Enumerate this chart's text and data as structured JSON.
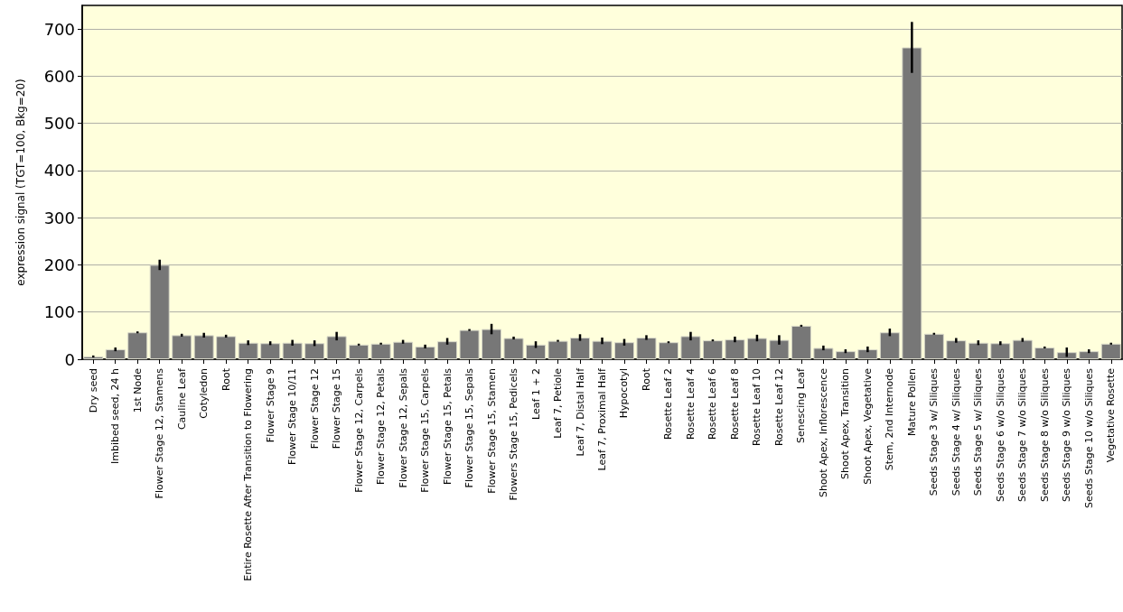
{
  "chart_data": {
    "type": "bar",
    "ylabel": "expression signal (TGT=100, Bkg=20)",
    "categories": [
      "Dry seed",
      "Imbibed seed, 24 h",
      "1st Node",
      "Flower Stage 12, Stamens",
      "Cauline Leaf",
      "Cotyledon",
      "Root",
      "Entire Rosette After Transition to Flowering",
      "Flower Stage 9",
      "Flower Stage 10/11",
      "Flower Stage 12",
      "Flower Stage 15",
      "Flower Stage 12, Carpels",
      "Flower Stage 12, Petals",
      "Flower Stage 12, Sepals",
      "Flower Stage 15, Carpels",
      "Flower Stage 15, Petals",
      "Flower Stage 15, Sepals",
      "Flower Stage 15, Stamen",
      "Flowers Stage 15, Pedicels",
      "Leaf 1 + 2",
      "Leaf 7, Petiole",
      "Leaf 7, Distal Half",
      "Leaf 7, Proximal Half",
      "Hypocotyl",
      "Root",
      "Rosette Leaf 2",
      "Rosette Leaf 4",
      "Rosette Leaf 6",
      "Rosette Leaf 8",
      "Rosette Leaf 10",
      "Rosette Leaf 12",
      "Senescing Leaf",
      "Shoot Apex, Inflorescence",
      "Shoot Apex, Transition",
      "Shoot Apex, Vegetative",
      "Stem, 2nd Internode",
      "Mature Pollen",
      "Seeds Stage 3 w/ Siliques",
      "Seeds Stage 4 w/ Siliques",
      "Seeds Stage 5 w/ Siliques",
      "Seeds Stage 6 w/o Siliques",
      "Seeds Stage 7 w/o Siliques",
      "Seeds Stage 8 w/o Siliques",
      "Seeds Stage 9 w/o Siliques",
      "Seeds Stage 10 w/o Siliques",
      "Vegetative Rosette"
    ],
    "values": [
      6,
      21,
      57,
      200,
      51,
      51,
      49,
      35,
      34,
      35,
      34,
      49,
      31,
      33,
      37,
      27,
      38,
      62,
      64,
      45,
      31,
      39,
      46,
      39,
      36,
      46,
      36,
      49,
      40,
      42,
      45,
      41,
      71,
      24,
      17,
      21,
      57,
      661,
      54,
      40,
      35,
      34,
      41,
      25,
      15,
      17,
      33
    ],
    "errors": [
      2,
      4,
      2,
      11,
      3,
      5,
      3,
      5,
      4,
      6,
      6,
      9,
      2,
      2,
      4,
      4,
      7,
      2,
      11,
      3,
      7,
      2,
      7,
      7,
      7,
      5,
      2,
      9,
      2,
      6,
      7,
      10,
      2,
      5,
      4,
      6,
      8,
      54,
      2,
      5,
      5,
      4,
      4,
      2,
      10,
      4,
      2
    ],
    "color": "#777777",
    "ylim": [
      0,
      750
    ],
    "yticks": [
      0,
      100,
      200,
      300,
      400,
      500,
      600,
      700
    ],
    "grid": "y"
  }
}
